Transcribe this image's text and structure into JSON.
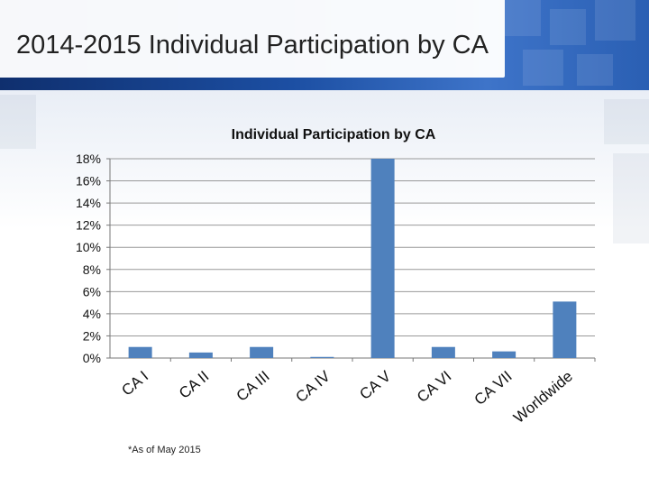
{
  "slide": {
    "title": "2014-2015 Individual Participation by CA",
    "footnote": "*As of May 2015"
  },
  "colors": {
    "bar": "#4f81bd",
    "banner_dark": "#0f2f6e",
    "banner_light": "#3e74c9"
  },
  "chart_data": {
    "type": "bar",
    "title": "Individual Participation by CA",
    "categories": [
      "CA I",
      "CA II",
      "CA III",
      "CA IV",
      "CA V",
      "CA VI",
      "CA VII",
      "Worldwide"
    ],
    "values": [
      1.0,
      0.5,
      1.0,
      0.1,
      18.0,
      1.0,
      0.6,
      5.1
    ],
    "ylim": [
      0,
      18
    ],
    "yticks": [
      "0%",
      "2%",
      "4%",
      "6%",
      "8%",
      "10%",
      "12%",
      "14%",
      "16%",
      "18%"
    ],
    "grid": true,
    "legend": "none"
  }
}
